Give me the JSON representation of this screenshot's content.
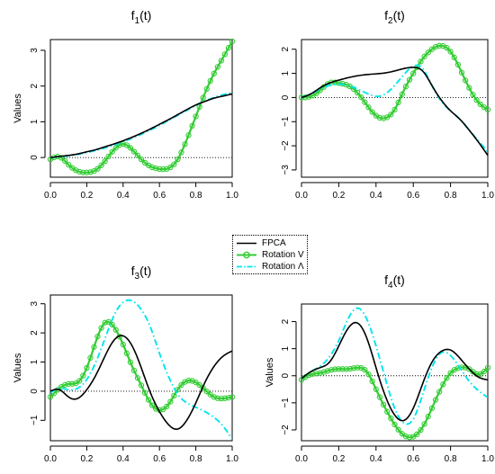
{
  "colors": {
    "fpca": "#000000",
    "rotation_v": "#33cc33",
    "rotation_lambda": "#00e5ee",
    "frame": "#000000"
  },
  "legend": {
    "placement": "center",
    "items": [
      {
        "label": "FPCA",
        "color": "#000000",
        "style": "solid"
      },
      {
        "label": "Rotation V",
        "color": "#33cc33",
        "style": "solid-circles"
      },
      {
        "label": "Rotation Λ",
        "color": "#00e5ee",
        "style": "dot-dash"
      }
    ]
  },
  "chart_data": [
    {
      "type": "line",
      "title": "f",
      "title_sub": "1",
      "title_arg": "(t)",
      "ylabel": "Values",
      "xlim": [
        0,
        1
      ],
      "ylim": [
        -0.55,
        3.3
      ],
      "xticks": [
        0,
        0.2,
        0.4,
        0.6,
        0.8,
        1
      ],
      "xtick_labels": [
        "0.0",
        "0.2",
        "0.4",
        "0.6",
        "0.8",
        "1.0"
      ],
      "yticks": [
        0,
        1,
        2,
        3
      ],
      "ytick_labels": [
        "0",
        "1",
        "2",
        "3"
      ],
      "reference_line": 0,
      "x": [
        0,
        0.05,
        0.1,
        0.15,
        0.2,
        0.25,
        0.3,
        0.35,
        0.4,
        0.45,
        0.5,
        0.55,
        0.6,
        0.65,
        0.7,
        0.75,
        0.8,
        0.85,
        0.9,
        0.95,
        1
      ],
      "series": [
        {
          "name": "FPCA",
          "values": [
            0,
            0.03,
            0.06,
            0.1,
            0.16,
            0.22,
            0.3,
            0.38,
            0.47,
            0.57,
            0.68,
            0.8,
            0.93,
            1.06,
            1.2,
            1.34,
            1.47,
            1.57,
            1.66,
            1.72,
            1.78
          ]
        },
        {
          "name": "Rotation V",
          "values": [
            -0.05,
            0.02,
            -0.2,
            -0.38,
            -0.42,
            -0.35,
            -0.1,
            0.22,
            0.38,
            0.22,
            -0.05,
            -0.25,
            -0.32,
            -0.3,
            -0.05,
            0.5,
            1.15,
            1.8,
            2.35,
            2.8,
            3.25
          ]
        },
        {
          "name": "Rotation Λ",
          "values": [
            0,
            0.02,
            0.05,
            0.09,
            0.14,
            0.2,
            0.27,
            0.35,
            0.44,
            0.54,
            0.65,
            0.77,
            0.9,
            1.04,
            1.18,
            1.32,
            1.46,
            1.58,
            1.68,
            1.76,
            1.82
          ]
        }
      ]
    },
    {
      "type": "line",
      "title": "f",
      "title_sub": "2",
      "title_arg": "(t)",
      "ylabel": "",
      "xlim": [
        0,
        1
      ],
      "ylim": [
        -3.3,
        2.4
      ],
      "xticks": [
        0,
        0.2,
        0.4,
        0.6,
        0.8,
        1
      ],
      "xtick_labels": [
        "0.0",
        "0.2",
        "0.4",
        "0.6",
        "0.8",
        "1.0"
      ],
      "yticks": [
        -3,
        -2,
        -1,
        0,
        1,
        2
      ],
      "ytick_labels": [
        "−3",
        "−2",
        "−1",
        "0",
        "1",
        "2"
      ],
      "reference_line": 0,
      "x": [
        0,
        0.05,
        0.1,
        0.15,
        0.2,
        0.25,
        0.3,
        0.35,
        0.4,
        0.45,
        0.5,
        0.55,
        0.6,
        0.65,
        0.7,
        0.75,
        0.8,
        0.85,
        0.9,
        0.95,
        1
      ],
      "series": [
        {
          "name": "FPCA",
          "values": [
            0,
            0.15,
            0.4,
            0.6,
            0.72,
            0.82,
            0.9,
            0.95,
            0.98,
            1.02,
            1.1,
            1.2,
            1.25,
            1.1,
            0.5,
            -0.1,
            -0.55,
            -0.9,
            -1.35,
            -1.85,
            -2.4
          ]
        },
        {
          "name": "Rotation V",
          "values": [
            0,
            0.05,
            0.3,
            0.6,
            0.6,
            0.5,
            0.2,
            -0.3,
            -0.75,
            -0.85,
            -0.5,
            0.3,
            1.0,
            1.6,
            2.0,
            2.15,
            1.9,
            1.2,
            0.4,
            -0.2,
            -0.5
          ]
        },
        {
          "name": "Rotation Λ",
          "values": [
            0,
            0.15,
            0.35,
            0.5,
            0.55,
            0.5,
            0.35,
            0.18,
            0.05,
            0.15,
            0.5,
            0.95,
            1.3,
            1.2,
            0.5,
            -0.15,
            -0.55,
            -0.9,
            -1.35,
            -1.8,
            -2.25
          ]
        }
      ]
    },
    {
      "type": "line",
      "title": "f",
      "title_sub": "3",
      "title_arg": "(t)",
      "ylabel": "Values",
      "xlim": [
        0,
        1
      ],
      "ylim": [
        -1.7,
        3.3
      ],
      "xticks": [
        0,
        0.2,
        0.4,
        0.6,
        0.8,
        1
      ],
      "xtick_labels": [
        "0.0",
        "0.2",
        "0.4",
        "0.6",
        "0.8",
        "1.0"
      ],
      "yticks": [
        -1,
        0,
        1,
        2,
        3
      ],
      "ytick_labels": [
        "−1",
        "0",
        "1",
        "2",
        "3"
      ],
      "reference_line": 0,
      "x": [
        0,
        0.05,
        0.1,
        0.15,
        0.2,
        0.25,
        0.3,
        0.35,
        0.4,
        0.45,
        0.5,
        0.55,
        0.6,
        0.65,
        0.7,
        0.75,
        0.8,
        0.85,
        0.9,
        0.95,
        1
      ],
      "series": [
        {
          "name": "FPCA",
          "values": [
            0,
            0.05,
            -0.2,
            -0.25,
            0.05,
            0.55,
            1.2,
            1.75,
            1.9,
            1.55,
            0.8,
            -0.05,
            -0.7,
            -1.15,
            -1.3,
            -1.0,
            -0.4,
            0.3,
            0.85,
            1.2,
            1.38
          ]
        },
        {
          "name": "Rotation V",
          "values": [
            -0.2,
            0.1,
            0.25,
            0.3,
            0.8,
            1.7,
            2.35,
            2.2,
            1.6,
            0.85,
            0.2,
            -0.4,
            -0.65,
            -0.45,
            0.05,
            0.35,
            0.3,
            0.05,
            -0.2,
            -0.25,
            -0.2
          ]
        },
        {
          "name": "Rotation Λ",
          "values": [
            -0.05,
            0.1,
            0.05,
            0.1,
            0.4,
            1.0,
            1.8,
            2.6,
            3.05,
            3.1,
            2.8,
            2.2,
            1.3,
            0.5,
            -0.1,
            -0.4,
            -0.55,
            -0.7,
            -0.9,
            -1.2,
            -1.65
          ]
        }
      ]
    },
    {
      "type": "line",
      "title": "f",
      "title_sub": "4",
      "title_arg": "(t)",
      "ylabel": "Values",
      "xlim": [
        0,
        1
      ],
      "ylim": [
        -2.4,
        2.65
      ],
      "xticks": [
        0,
        0.2,
        0.4,
        0.6,
        0.8,
        1
      ],
      "xtick_labels": [
        "0.0",
        "0.2",
        "0.4",
        "0.6",
        "0.8",
        "1.0"
      ],
      "yticks": [
        -2,
        -1,
        0,
        1,
        2
      ],
      "ytick_labels": [
        "−2",
        "−1",
        "0",
        "1",
        "2"
      ],
      "reference_line": 0,
      "x": [
        0,
        0.05,
        0.1,
        0.15,
        0.2,
        0.25,
        0.3,
        0.35,
        0.4,
        0.45,
        0.5,
        0.55,
        0.6,
        0.65,
        0.7,
        0.75,
        0.8,
        0.85,
        0.9,
        0.95,
        1
      ],
      "series": [
        {
          "name": "FPCA",
          "values": [
            -0.1,
            0.15,
            0.3,
            0.5,
            1.1,
            1.75,
            1.95,
            1.4,
            0.3,
            -0.75,
            -1.45,
            -1.65,
            -1.2,
            -0.3,
            0.5,
            0.9,
            0.95,
            0.65,
            0.25,
            -0.05,
            -0.15
          ]
        },
        {
          "name": "Rotation V",
          "values": [
            -0.15,
            0.05,
            0.1,
            0.2,
            0.25,
            0.25,
            0.3,
            0.15,
            -0.5,
            -1.2,
            -1.8,
            -2.2,
            -2.25,
            -1.9,
            -1.2,
            -0.45,
            0.1,
            0.3,
            0.25,
            0.05,
            0.3
          ]
        },
        {
          "name": "Rotation Λ",
          "values": [
            -0.1,
            0.15,
            0.35,
            0.7,
            1.3,
            2.1,
            2.5,
            2.1,
            1.1,
            -0.1,
            -1.2,
            -1.75,
            -1.6,
            -0.7,
            0.3,
            0.85,
            0.75,
            0.3,
            -0.2,
            -0.55,
            -0.8
          ]
        }
      ]
    }
  ]
}
